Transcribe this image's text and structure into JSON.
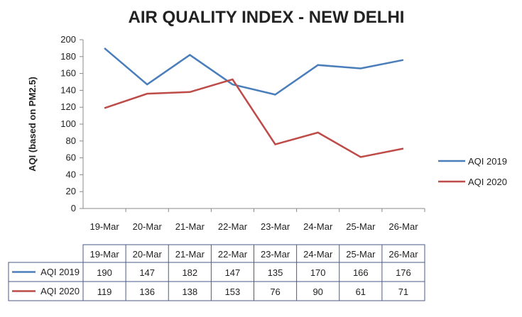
{
  "chart_data": {
    "type": "line",
    "title": "AIR QUALITY INDEX - NEW DELHI",
    "xlabel": "",
    "ylabel": "AQI (based on PM2.5)",
    "ylim": [
      0,
      200
    ],
    "yticks": [
      0,
      20,
      40,
      60,
      80,
      100,
      120,
      140,
      160,
      180,
      200
    ],
    "grid": false,
    "legend": "right",
    "categories": [
      "19-Mar",
      "20-Mar",
      "21-Mar",
      "22-Mar",
      "23-Mar",
      "24-Mar",
      "25-Mar",
      "26-Mar"
    ],
    "series": [
      {
        "name": "AQI 2019",
        "color": "#4a7ebb",
        "values": [
          190,
          147,
          182,
          147,
          135,
          170,
          166,
          176
        ]
      },
      {
        "name": "AQI 2020",
        "color": "#be4b48",
        "values": [
          119,
          136,
          138,
          153,
          76,
          90,
          61,
          71
        ]
      }
    ],
    "data_table": true
  }
}
